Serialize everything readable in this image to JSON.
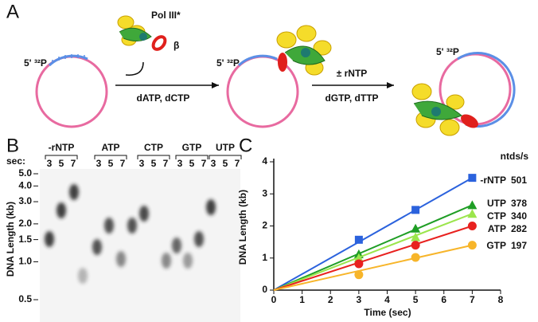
{
  "panel_a": {
    "label": "A",
    "primer_label": "5' ³²P",
    "enzyme": "Pol III*",
    "clamp": "β",
    "step1": "dATP, dCTP",
    "step2_top": "± rNTP",
    "step2_bottom": "dGTP, dTTP"
  },
  "panel_b": {
    "label": "B",
    "sec_label": "sec:",
    "ylabel": "DNA Length (kb)",
    "log_scale": true,
    "ylim": [
      0.5,
      5
    ],
    "yticks": [
      {
        "value": 5,
        "label": "5.0"
      },
      {
        "value": 4,
        "label": "4.0"
      },
      {
        "value": 3,
        "label": "3.0"
      },
      {
        "value": 2,
        "label": "2.0"
      },
      1.5,
      {
        "value": 1,
        "label": "1.0"
      },
      0.5
    ],
    "lanes": [
      {
        "name": "-rNTP",
        "times": [
          3,
          5,
          7
        ]
      },
      {
        "name": "ATP",
        "times": [
          3,
          5,
          7
        ]
      },
      {
        "name": "CTP",
        "times": [
          3,
          5,
          7
        ]
      },
      {
        "name": "GTP",
        "times": [
          3,
          5,
          7
        ]
      },
      {
        "name": "UTP",
        "times": [
          3,
          5,
          7
        ]
      }
    ]
  },
  "chart_data": {
    "type": "line",
    "label": "C",
    "xlabel": "Time (sec)",
    "ylabel": "DNA Length (kb)",
    "rate_header": "ntds/s",
    "x": [
      3,
      5,
      7
    ],
    "xlim": [
      0,
      8
    ],
    "xticks": [
      0,
      1,
      2,
      3,
      4,
      5,
      6,
      7,
      8
    ],
    "ylim": [
      0,
      4
    ],
    "yticks": [
      0,
      1,
      2,
      3,
      4
    ],
    "series": [
      {
        "name": "-rNTP",
        "rate": 501,
        "color": "#2b62dd",
        "marker": "square",
        "values": [
          1.57,
          2.5,
          3.5
        ]
      },
      {
        "name": "UTP",
        "rate": 378,
        "color": "#1f9e25",
        "marker": "triangle",
        "values": [
          1.12,
          1.92,
          2.65
        ]
      },
      {
        "name": "CTP",
        "rate": 340,
        "color": "#9be54c",
        "marker": "triangle",
        "values": [
          1.0,
          1.65,
          2.38
        ]
      },
      {
        "name": "ATP",
        "rate": 282,
        "color": "#e8211f",
        "marker": "circle",
        "values": [
          0.82,
          1.4,
          2.0
        ]
      },
      {
        "name": "GTP",
        "rate": 197,
        "color": "#f7b52a",
        "marker": "circle",
        "values": [
          0.48,
          1.02,
          1.4
        ]
      }
    ]
  }
}
